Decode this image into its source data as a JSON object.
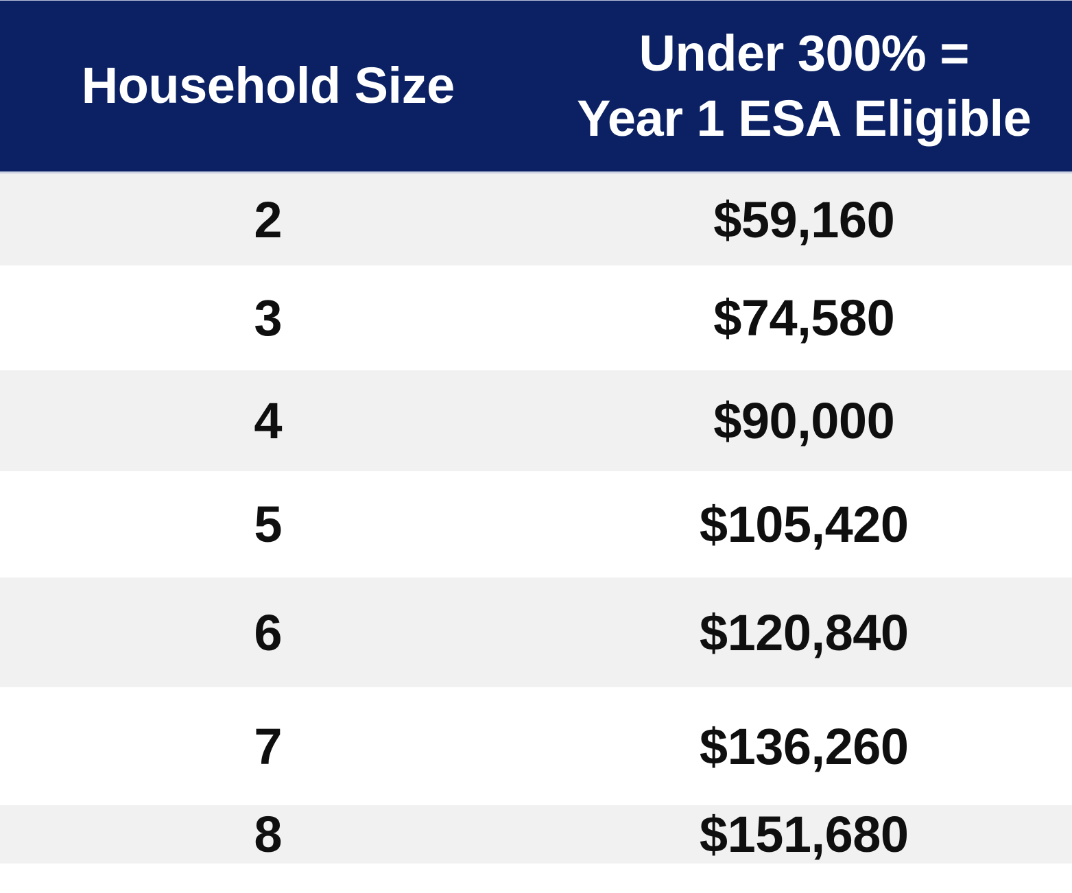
{
  "colors": {
    "header_bg": "#0B2163",
    "header_text": "#FFFFFF",
    "row_alt_bg": "#F1F1F1",
    "row_bg": "#FFFFFF",
    "body_text": "#0F0F0F",
    "header_rule": "#CCD4E4"
  },
  "table": {
    "header": {
      "col1": "Household Size",
      "col2_line1": "Under 300% =",
      "col2_line2": "Year 1 ESA Eligible"
    },
    "rows": [
      {
        "size": "2",
        "amount": "$59,160"
      },
      {
        "size": "3",
        "amount": "$74,580"
      },
      {
        "size": "4",
        "amount": "$90,000"
      },
      {
        "size": "5",
        "amount": "$105,420"
      },
      {
        "size": "6",
        "amount": "$120,840"
      },
      {
        "size": "7",
        "amount": "$136,260"
      },
      {
        "size": "8",
        "amount": "$151,680"
      }
    ]
  },
  "chart_data": {
    "type": "table",
    "title": "",
    "columns": [
      "Household Size",
      "Under 300% = Year 1 ESA Eligible"
    ],
    "rows": [
      [
        "2",
        "$59,160"
      ],
      [
        "3",
        "$74,580"
      ],
      [
        "4",
        "$90,000"
      ],
      [
        "5",
        "$105,420"
      ],
      [
        "6",
        "$120,840"
      ],
      [
        "7",
        "$136,260"
      ],
      [
        "8",
        "$151,680"
      ]
    ]
  }
}
